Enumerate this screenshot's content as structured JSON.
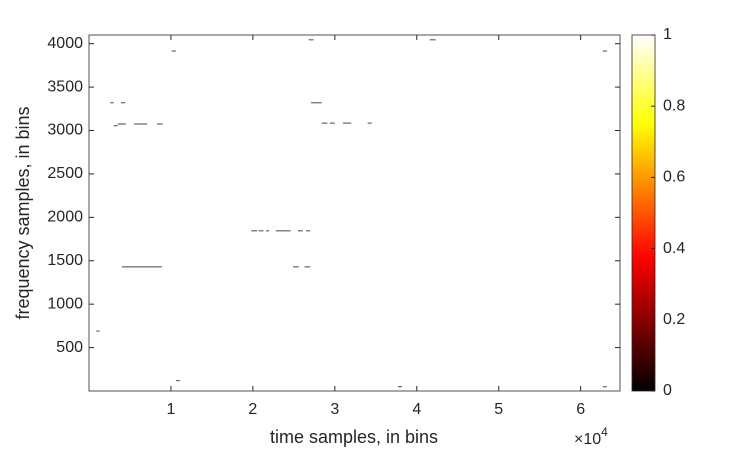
{
  "chart_data": {
    "type": "heatmap",
    "xlabel": "time samples, in bins",
    "ylabel": "frequency samples, in bins",
    "x_multiplier": {
      "base": "×10",
      "exponent": "4"
    },
    "xlim": [
      0,
      6.48
    ],
    "xticks": [
      1,
      2,
      3,
      4,
      5,
      6
    ],
    "ylim": [
      0,
      4100
    ],
    "yticks": [
      500,
      1000,
      1500,
      2000,
      2500,
      3000,
      3500,
      4000
    ],
    "background_value": 1,
    "segments": [
      {
        "x": [
          0.09,
          0.13
        ],
        "y": 690,
        "value": 0
      },
      {
        "x": [
          0.26,
          0.3
        ],
        "y": 3320,
        "value": 0
      },
      {
        "x": [
          0.39,
          0.44
        ],
        "y": 3320,
        "value": 0
      },
      {
        "x": [
          0.3,
          0.35
        ],
        "y": 3055,
        "value": 0
      },
      {
        "x": [
          0.35,
          0.45
        ],
        "y": 3075,
        "value": 0
      },
      {
        "x": [
          0.55,
          0.71
        ],
        "y": 3075,
        "value": 0
      },
      {
        "x": [
          0.83,
          0.9
        ],
        "y": 3075,
        "value": 0
      },
      {
        "x": [
          0.4,
          0.89
        ],
        "y": 1430,
        "value": 0
      },
      {
        "x": [
          1.01,
          1.06
        ],
        "y": 3915,
        "value": 0
      },
      {
        "x": [
          1.06,
          1.11
        ],
        "y": 120,
        "value": 0
      },
      {
        "x": [
          1.98,
          2.05
        ],
        "y": 1845,
        "value": 0
      },
      {
        "x": [
          2.07,
          2.13
        ],
        "y": 1845,
        "value": 0
      },
      {
        "x": [
          2.16,
          2.2
        ],
        "y": 1845,
        "value": 0
      },
      {
        "x": [
          2.28,
          2.46
        ],
        "y": 1845,
        "value": 0
      },
      {
        "x": [
          2.55,
          2.61
        ],
        "y": 1845,
        "value": 0
      },
      {
        "x": [
          2.65,
          2.7
        ],
        "y": 1845,
        "value": 0
      },
      {
        "x": [
          2.49,
          2.56
        ],
        "y": 1430,
        "value": 0
      },
      {
        "x": [
          2.63,
          2.7
        ],
        "y": 1430,
        "value": 0
      },
      {
        "x": [
          2.68,
          2.74
        ],
        "y": 4045,
        "value": 0
      },
      {
        "x": [
          2.71,
          2.84
        ],
        "y": 3320,
        "value": 0
      },
      {
        "x": [
          2.84,
          2.91
        ],
        "y": 3085,
        "value": 0
      },
      {
        "x": [
          2.94,
          3.0
        ],
        "y": 3085,
        "value": 0
      },
      {
        "x": [
          3.1,
          3.2
        ],
        "y": 3085,
        "value": 0
      },
      {
        "x": [
          3.4,
          3.45
        ],
        "y": 3085,
        "value": 0
      },
      {
        "x": [
          3.77,
          3.82
        ],
        "y": 50,
        "value": 0
      },
      {
        "x": [
          4.16,
          4.23
        ],
        "y": 4045,
        "value": 0
      },
      {
        "x": [
          6.27,
          6.32
        ],
        "y": 3915,
        "value": 0
      },
      {
        "x": [
          6.27,
          6.32
        ],
        "y": 50,
        "value": 0
      }
    ],
    "colorbar": {
      "colormap": "hot",
      "clim": [
        0,
        1
      ],
      "ticks": [
        0,
        0.2,
        0.4,
        0.6,
        0.8,
        1
      ]
    }
  }
}
